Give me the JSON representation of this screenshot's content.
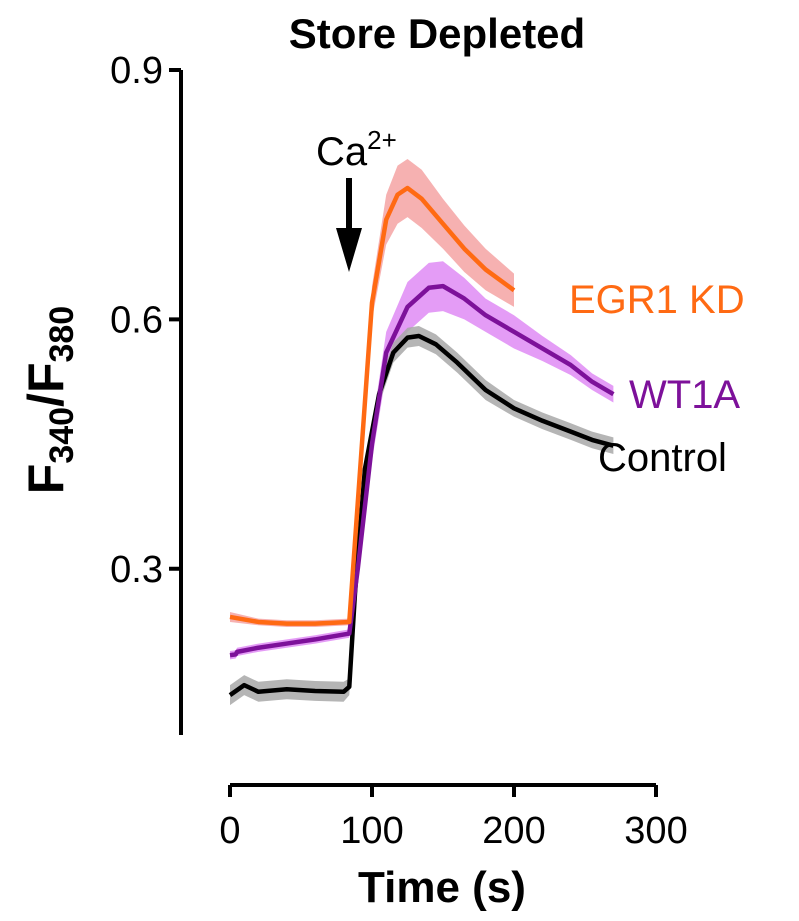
{
  "chart_data": {
    "type": "line",
    "title": "Store Depleted",
    "xlabel": "Time (s)",
    "ylabel_main": "F",
    "ylabel_sub1": "340",
    "ylabel_slash": "/F",
    "ylabel_sub2": "380",
    "xlim": [
      0,
      300
    ],
    "ylim": [
      0.1,
      0.9
    ],
    "xticks": [
      0,
      100,
      200,
      300
    ],
    "xtick_labels": [
      "0",
      "100",
      "200",
      "300"
    ],
    "yticks": [
      0.3,
      0.6,
      0.9
    ],
    "ytick_labels": [
      "0.3",
      "0.6",
      "0.9"
    ],
    "annotation": {
      "text": "Ca",
      "sup": "2+",
      "x": 85
    },
    "series": [
      {
        "name": "EGR1 KD",
        "color": "#ff6a13",
        "band_color": "#f5a3a3",
        "x": [
          0,
          20,
          40,
          60,
          84,
          90,
          100,
          110,
          118,
          125,
          135,
          150,
          165,
          180,
          200
        ],
        "y": [
          0.242,
          0.236,
          0.234,
          0.234,
          0.236,
          0.38,
          0.62,
          0.72,
          0.75,
          0.758,
          0.745,
          0.715,
          0.685,
          0.66,
          0.635
        ],
        "err": [
          0.006,
          0.004,
          0.004,
          0.004,
          0.004,
          0.01,
          0.02,
          0.03,
          0.035,
          0.035,
          0.035,
          0.03,
          0.028,
          0.025,
          0.02
        ]
      },
      {
        "name": "WT1A",
        "color": "#7d119a",
        "band_color": "#df8bf5",
        "x": [
          0,
          4,
          5,
          20,
          40,
          60,
          84,
          90,
          100,
          110,
          125,
          140,
          150,
          165,
          180,
          200,
          220,
          240,
          255,
          270
        ],
        "y": [
          0.196,
          0.197,
          0.2,
          0.205,
          0.21,
          0.215,
          0.222,
          0.3,
          0.45,
          0.56,
          0.615,
          0.638,
          0.64,
          0.625,
          0.605,
          0.585,
          0.565,
          0.545,
          0.525,
          0.51
        ],
        "err": [
          0.005,
          0.005,
          0.005,
          0.005,
          0.005,
          0.005,
          0.005,
          0.01,
          0.02,
          0.025,
          0.03,
          0.03,
          0.03,
          0.025,
          0.02,
          0.02,
          0.015,
          0.012,
          0.01,
          0.01
        ]
      },
      {
        "name": "Control",
        "color": "#000000",
        "band_color": "#a8a8a8",
        "x": [
          0,
          10,
          20,
          40,
          60,
          80,
          84,
          88,
          95,
          105,
          115,
          125,
          133,
          145,
          160,
          180,
          200,
          220,
          240,
          255,
          270
        ],
        "y": [
          0.148,
          0.16,
          0.152,
          0.155,
          0.153,
          0.152,
          0.158,
          0.27,
          0.42,
          0.51,
          0.56,
          0.578,
          0.58,
          0.57,
          0.548,
          0.515,
          0.493,
          0.478,
          0.465,
          0.455,
          0.448
        ],
        "err": [
          0.012,
          0.012,
          0.012,
          0.012,
          0.012,
          0.012,
          0.01,
          0.01,
          0.012,
          0.012,
          0.012,
          0.012,
          0.012,
          0.012,
          0.012,
          0.012,
          0.01,
          0.01,
          0.01,
          0.01,
          0.01
        ]
      }
    ],
    "grid": false,
    "legend": "inline-right"
  }
}
